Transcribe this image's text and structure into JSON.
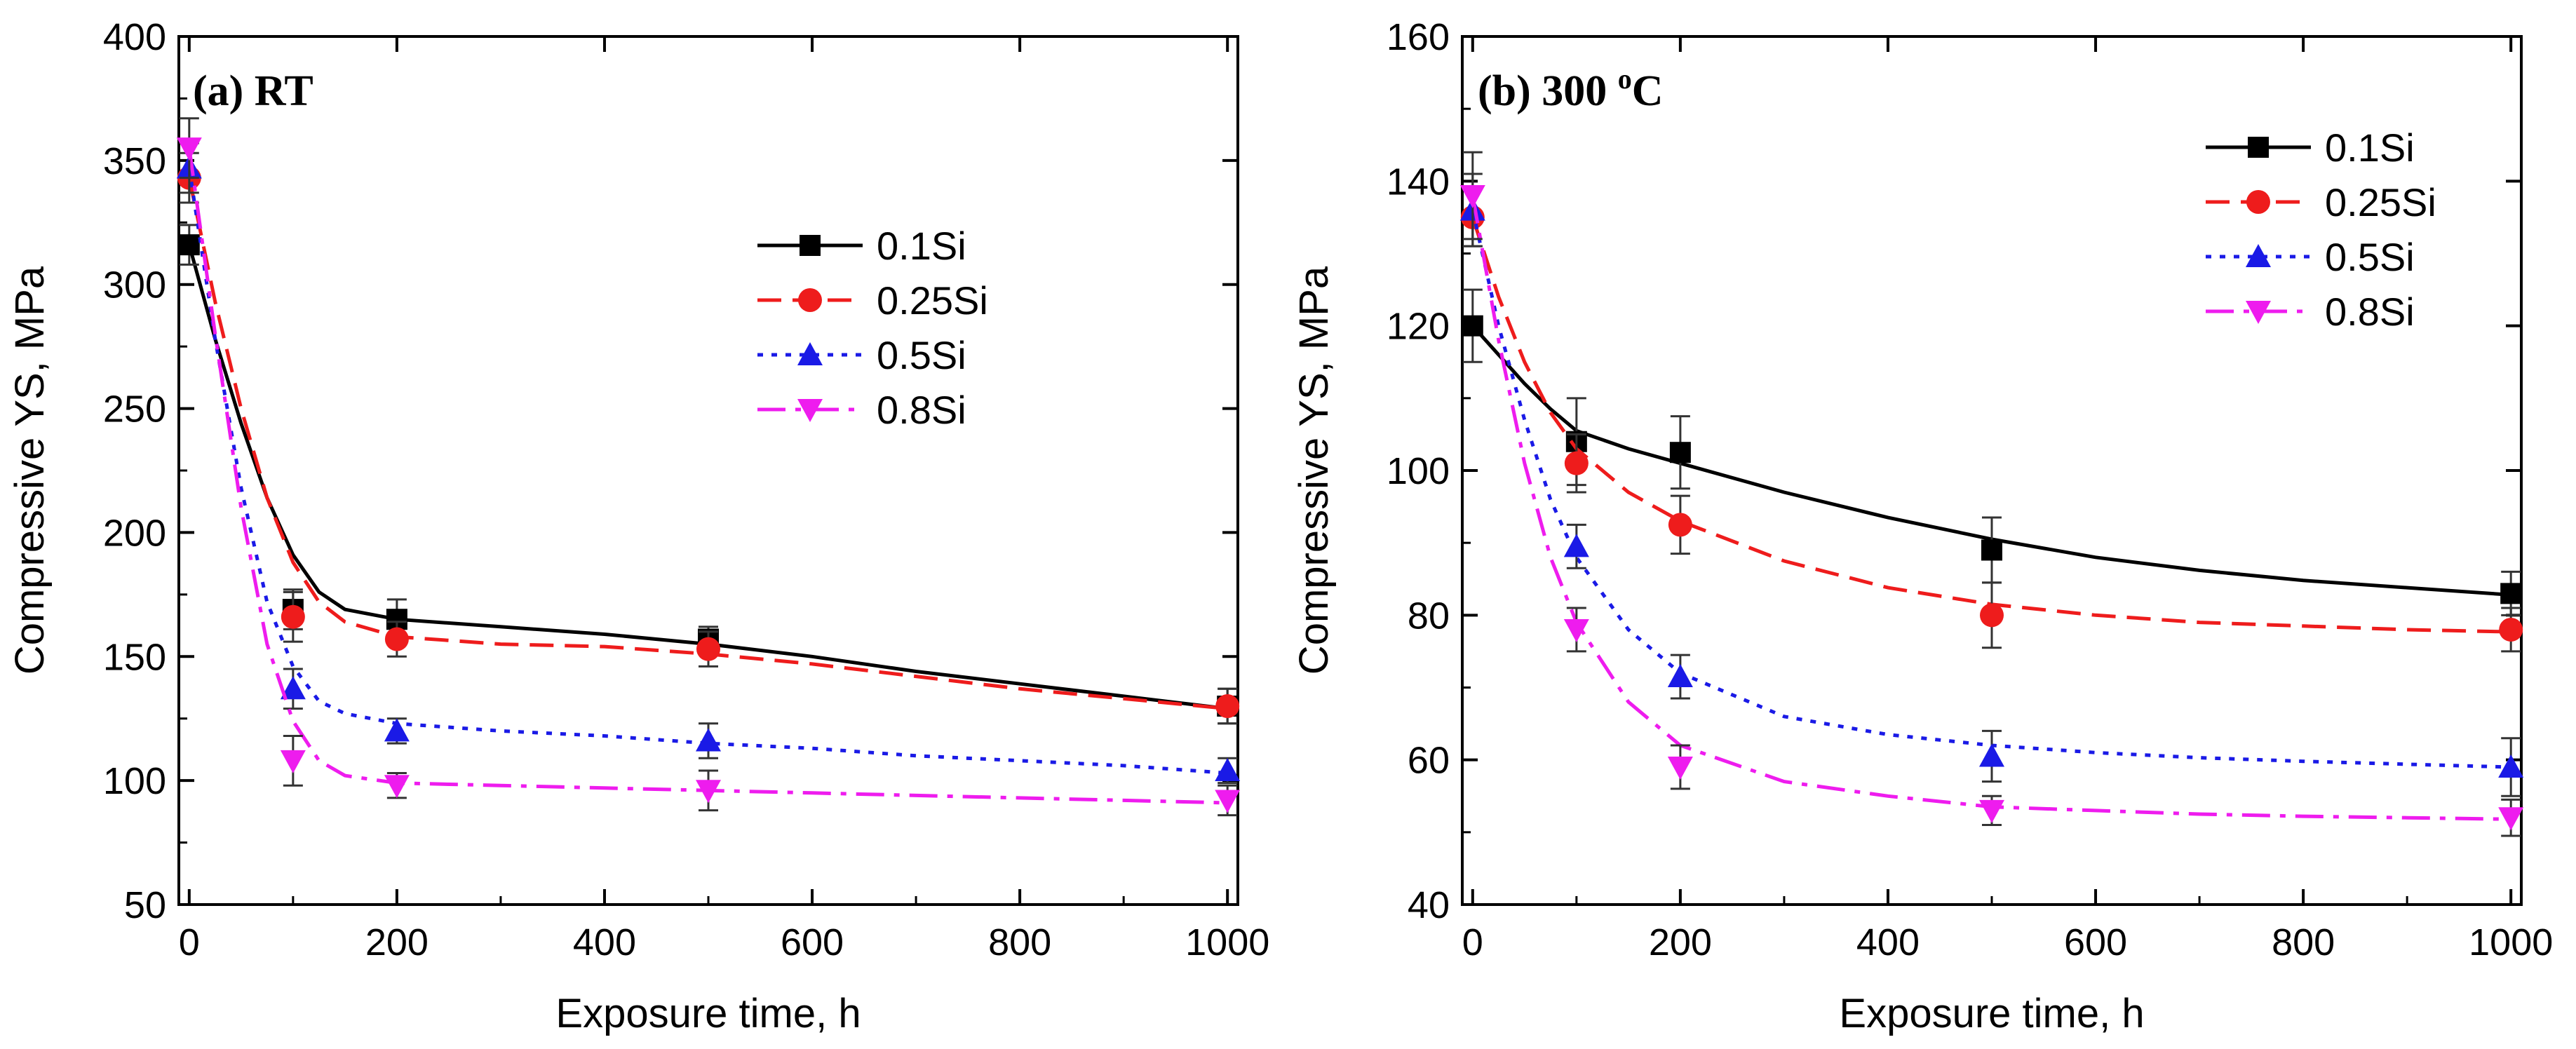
{
  "chart_data": [
    {
      "type": "line",
      "panel_label": "(a) RT",
      "xlabel": "Exposure time, h",
      "ylabel": "Compressive YS, MPa",
      "xlim": [
        -10,
        1010
      ],
      "ylim": [
        50,
        400
      ],
      "xticks": [
        0,
        200,
        400,
        600,
        800,
        1000
      ],
      "yticks": [
        50,
        100,
        150,
        200,
        250,
        300,
        350,
        400
      ],
      "legend_position": "upper-right",
      "grid": false,
      "series": [
        {
          "name": "0.1Si",
          "color": "#000000",
          "marker": "square",
          "line": "solid",
          "x": [
            0,
            100,
            200,
            500,
            1000
          ],
          "y": [
            316,
            169,
            165,
            157,
            130
          ],
          "err": [
            8,
            8,
            8,
            5,
            7
          ],
          "fit": [
            [
              0,
              316
            ],
            [
              25,
              278
            ],
            [
              50,
              244
            ],
            [
              75,
              214
            ],
            [
              100,
              191
            ],
            [
              125,
              176
            ],
            [
              150,
              169
            ],
            [
              200,
              165
            ],
            [
              300,
              162
            ],
            [
              400,
              159
            ],
            [
              500,
              155
            ],
            [
              600,
              150
            ],
            [
              700,
              144
            ],
            [
              800,
              139
            ],
            [
              900,
              134
            ],
            [
              1000,
              129
            ]
          ]
        },
        {
          "name": "0.25Si",
          "color": "#ee1c1c",
          "marker": "circle",
          "line": "dashed",
          "x": [
            0,
            100,
            200,
            500,
            1000
          ],
          "y": [
            343,
            166,
            157,
            153,
            130
          ],
          "err": [
            10,
            10,
            7,
            7,
            7
          ],
          "fit": [
            [
              0,
              343
            ],
            [
              25,
              293
            ],
            [
              50,
              250
            ],
            [
              75,
              214
            ],
            [
              100,
              188
            ],
            [
              125,
              172
            ],
            [
              150,
              164
            ],
            [
              200,
              158
            ],
            [
              300,
              155
            ],
            [
              400,
              154
            ],
            [
              500,
              151
            ],
            [
              600,
              147
            ],
            [
              700,
              142
            ],
            [
              800,
              137
            ],
            [
              900,
              133
            ],
            [
              1000,
              129
            ]
          ]
        },
        {
          "name": "0.5Si",
          "color": "#1a1ae6",
          "marker": "triangle-up",
          "line": "dotted",
          "x": [
            0,
            100,
            200,
            500,
            1000
          ],
          "y": [
            347,
            137,
            120,
            116,
            104
          ],
          "err": [
            10,
            8,
            5,
            7,
            5
          ],
          "fit": [
            [
              0,
              347
            ],
            [
              25,
              278
            ],
            [
              50,
              218
            ],
            [
              75,
              172
            ],
            [
              100,
              146
            ],
            [
              125,
              132
            ],
            [
              150,
              127
            ],
            [
              200,
              123
            ],
            [
              300,
              120
            ],
            [
              400,
              118
            ],
            [
              500,
              115
            ],
            [
              600,
              113
            ],
            [
              700,
              110
            ],
            [
              800,
              108
            ],
            [
              900,
              106
            ],
            [
              1000,
              103
            ]
          ]
        },
        {
          "name": "0.8Si",
          "color": "#ee1cee",
          "marker": "triangle-down",
          "line": "dashdot",
          "x": [
            0,
            100,
            200,
            500,
            1000
          ],
          "y": [
            355,
            108,
            98,
            96,
            92
          ],
          "err": [
            12,
            10,
            5,
            8,
            6
          ],
          "fit": [
            [
              0,
              355
            ],
            [
              25,
              280
            ],
            [
              50,
              210
            ],
            [
              75,
              155
            ],
            [
              100,
              124
            ],
            [
              125,
              108
            ],
            [
              150,
              102
            ],
            [
              200,
              99
            ],
            [
              300,
              98
            ],
            [
              400,
              97
            ],
            [
              500,
              96
            ],
            [
              600,
              95
            ],
            [
              700,
              94
            ],
            [
              800,
              93
            ],
            [
              900,
              92
            ],
            [
              1000,
              91
            ]
          ]
        }
      ]
    },
    {
      "type": "line",
      "panel_label": "(b) 300 ",
      "panel_label_sup": "o",
      "panel_label_end": "C",
      "xlabel": "Exposure time, h",
      "ylabel": "Compressive YS, MPa",
      "xlim": [
        -10,
        1010
      ],
      "ylim": [
        40,
        160
      ],
      "xticks": [
        0,
        200,
        400,
        600,
        800,
        1000
      ],
      "yticks": [
        40,
        60,
        80,
        100,
        120,
        140,
        160
      ],
      "legend_position": "upper-right",
      "grid": false,
      "series": [
        {
          "name": "0.1Si",
          "color": "#000000",
          "marker": "square",
          "line": "solid",
          "x": [
            0,
            100,
            200,
            500,
            1000
          ],
          "y": [
            120,
            104,
            102.5,
            89,
            83
          ],
          "err": [
            5,
            6,
            5,
            4.5,
            3
          ],
          "fit": [
            [
              0,
              120
            ],
            [
              25,
              116
            ],
            [
              50,
              112
            ],
            [
              75,
              108.5
            ],
            [
              100,
              105.5
            ],
            [
              150,
              103
            ],
            [
              200,
              101
            ],
            [
              300,
              97
            ],
            [
              400,
              93.5
            ],
            [
              500,
              90.5
            ],
            [
              600,
              88
            ],
            [
              700,
              86.2
            ],
            [
              800,
              84.8
            ],
            [
              900,
              83.8
            ],
            [
              1000,
              82.8
            ]
          ]
        },
        {
          "name": "0.25Si",
          "color": "#ee1c1c",
          "marker": "circle",
          "line": "dashed",
          "x": [
            0,
            100,
            200,
            500,
            1000
          ],
          "y": [
            135,
            101,
            92.5,
            80,
            78
          ],
          "err": [
            4,
            4,
            4,
            4.5,
            3
          ],
          "fit": [
            [
              0,
              135
            ],
            [
              25,
              124
            ],
            [
              50,
              115
            ],
            [
              75,
              108
            ],
            [
              100,
              103
            ],
            [
              150,
              97
            ],
            [
              200,
              93
            ],
            [
              300,
              87.5
            ],
            [
              400,
              83.8
            ],
            [
              500,
              81.5
            ],
            [
              600,
              80
            ],
            [
              700,
              79
            ],
            [
              800,
              78.5
            ],
            [
              900,
              78
            ],
            [
              1000,
              77.7
            ]
          ]
        },
        {
          "name": "0.5Si",
          "color": "#1a1ae6",
          "marker": "triangle-up",
          "line": "dotted",
          "x": [
            0,
            100,
            200,
            500,
            1000
          ],
          "y": [
            136,
            89.5,
            71.5,
            60.5,
            59
          ],
          "err": [
            5,
            3,
            3,
            3.5,
            4
          ]
        },
        {
          "name": "0.8Si",
          "color": "#ee1cee",
          "marker": "triangle-down",
          "line": "dashdot",
          "x": [
            0,
            100,
            200,
            500,
            1000
          ],
          "y": [
            138,
            78,
            59,
            53,
            52
          ],
          "err": [
            6,
            3,
            3,
            2,
            2.5
          ]
        }
      ]
    }
  ],
  "fits_b": {
    "0.5Si": [
      [
        0,
        136
      ],
      [
        25,
        120
      ],
      [
        50,
        107
      ],
      [
        75,
        96
      ],
      [
        100,
        88
      ],
      [
        150,
        78
      ],
      [
        200,
        72
      ],
      [
        300,
        66
      ],
      [
        400,
        63.5
      ],
      [
        500,
        62
      ],
      [
        600,
        61
      ],
      [
        700,
        60.3
      ],
      [
        800,
        59.8
      ],
      [
        900,
        59.4
      ],
      [
        1000,
        59
      ]
    ],
    "0.8Si": [
      [
        0,
        138
      ],
      [
        25,
        118
      ],
      [
        50,
        101
      ],
      [
        75,
        88
      ],
      [
        100,
        79
      ],
      [
        150,
        68
      ],
      [
        200,
        62
      ],
      [
        300,
        57
      ],
      [
        400,
        55
      ],
      [
        500,
        53.5
      ],
      [
        600,
        53
      ],
      [
        700,
        52.5
      ],
      [
        800,
        52.2
      ],
      [
        900,
        52
      ],
      [
        1000,
        51.8
      ]
    ]
  }
}
